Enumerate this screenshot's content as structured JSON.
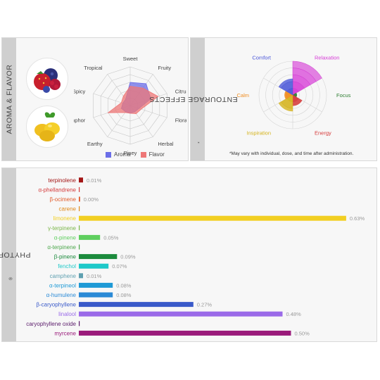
{
  "panels": {
    "aroma_title": "AROMA & FLAVOR",
    "effects_title": "ENTOURAGE EFFECTS",
    "effects_mark": "*",
    "effects_note": "*May vary with individual, dose, and time after administration.",
    "phytoprint_title": "PHYTOPRINT",
    "phytoprint_mark": "®"
  },
  "icons": {
    "aroma": "berries-icon",
    "flavor": "lemon-icon"
  },
  "chart_data": [
    {
      "type": "radar",
      "axes": [
        "Sweet",
        "Fruity",
        "Citrusy",
        "Floral",
        "Herbal",
        "Piney",
        "Earthy",
        "Camphor",
        "Spicy",
        "Tropical"
      ],
      "rmax": 5,
      "series": [
        {
          "name": "Aroma",
          "color": "#6b6ee8",
          "values": [
            3,
            3.5,
            2.8,
            1.2,
            1,
            1,
            1,
            1.2,
            1,
            1
          ]
        },
        {
          "name": "Flavor",
          "color": "#ee7777",
          "values": [
            2.5,
            2.8,
            3.8,
            1.5,
            1.3,
            1,
            1.1,
            3,
            1.2,
            1.5
          ]
        }
      ]
    },
    {
      "type": "polar-area",
      "categories": [
        "Relaxation",
        "Focus",
        "Energy",
        "Inspiration",
        "Calm",
        "Comfort"
      ],
      "colors": [
        "#d63ad6",
        "#2e7d32",
        "#d63a3a",
        "#d4b21a",
        "#f08c1e",
        "#4a56d8"
      ],
      "values": [
        5,
        0.6,
        1.6,
        2.4,
        1.2,
        2.4
      ],
      "rmax": 5
    },
    {
      "type": "bar",
      "orientation": "horizontal",
      "xlim": [
        0,
        0.65
      ],
      "items": [
        {
          "label": "terpinolene",
          "value": 0.01,
          "display": "0.01%",
          "color": "#a31515"
        },
        {
          "label": "α-phellandrene",
          "value": 0,
          "display": "",
          "color": "#d43a3a"
        },
        {
          "label": "β-ocimene",
          "value": 0.003,
          "display": "0.00%",
          "color": "#e05a2a"
        },
        {
          "label": "carene",
          "value": 0,
          "display": "",
          "color": "#e08a1a"
        },
        {
          "label": "limonene",
          "value": 0.63,
          "display": "0.63%",
          "color": "#f2cf22"
        },
        {
          "label": "γ-terpinene",
          "value": 0,
          "display": "",
          "color": "#7ab648"
        },
        {
          "label": "α-pinene",
          "value": 0.05,
          "display": "0.05%",
          "color": "#5fcf5f"
        },
        {
          "label": "α-terpinene",
          "value": 0,
          "display": "",
          "color": "#4aa64a"
        },
        {
          "label": "β-pinene",
          "value": 0.09,
          "display": "0.09%",
          "color": "#1b8a3c"
        },
        {
          "label": "fenchol",
          "value": 0.07,
          "display": "0.07%",
          "color": "#1ec9c9"
        },
        {
          "label": "camphene",
          "value": 0.01,
          "display": "0.01%",
          "color": "#5fa0b0"
        },
        {
          "label": "α-terpineol",
          "value": 0.08,
          "display": "0.08%",
          "color": "#1e9ad6"
        },
        {
          "label": "α-humulene",
          "value": 0.08,
          "display": "0.08%",
          "color": "#2a8ad6"
        },
        {
          "label": "β-caryophyllene",
          "value": 0.27,
          "display": "0.27%",
          "color": "#3a5ac9"
        },
        {
          "label": "linalool",
          "value": 0.48,
          "display": "0.48%",
          "color": "#9a6ae8"
        },
        {
          "label": "caryophyllene oxide",
          "value": 0,
          "display": "",
          "color": "#5a1a6a"
        },
        {
          "label": "myrcene",
          "value": 0.5,
          "display": "0.50%",
          "color": "#9a1a7a"
        }
      ]
    }
  ]
}
